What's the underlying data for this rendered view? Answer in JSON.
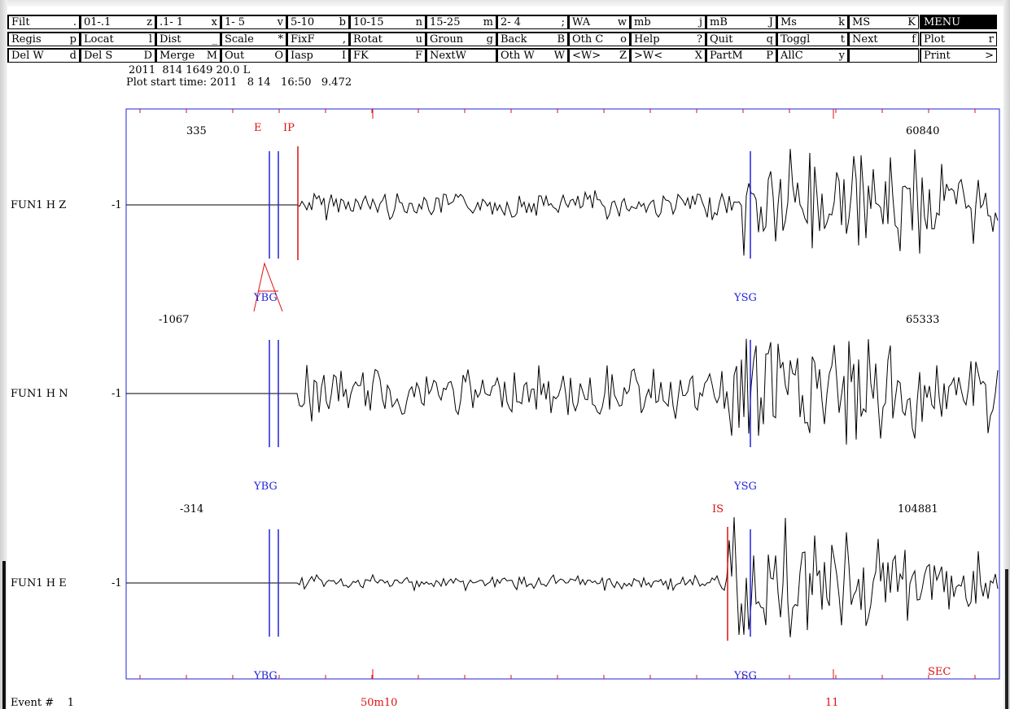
{
  "menu": {
    "row1": [
      {
        "label": "Filt",
        "key": "."
      },
      {
        "label": "01-.1",
        "key": "z"
      },
      {
        "label": ".1- 1",
        "key": "x"
      },
      {
        "label": "1- 5",
        "key": "v"
      },
      {
        "label": "5-10",
        "key": "b"
      },
      {
        "label": "10-15",
        "key": "n"
      },
      {
        "label": "15-25",
        "key": "m"
      },
      {
        "label": "2- 4",
        "key": ";"
      },
      {
        "label": "WA",
        "key": "w"
      },
      {
        "label": "mb",
        "key": "j"
      },
      {
        "label": "mB",
        "key": "J"
      },
      {
        "label": "Ms",
        "key": "k"
      },
      {
        "label": "MS",
        "key": "K"
      },
      {
        "label": "MENU",
        "key": ""
      }
    ],
    "row2": [
      {
        "label": "Regis",
        "key": "p"
      },
      {
        "label": "Locat",
        "key": "l"
      },
      {
        "label": "Dist",
        "key": "_"
      },
      {
        "label": "Scale",
        "key": "*"
      },
      {
        "label": "FixF",
        "key": ","
      },
      {
        "label": "Rotat",
        "key": "u"
      },
      {
        "label": "Groun",
        "key": "g"
      },
      {
        "label": "Back",
        "key": "B"
      },
      {
        "label": "Oth C",
        "key": "o"
      },
      {
        "label": "Help",
        "key": "?"
      },
      {
        "label": "Quit",
        "key": "q"
      },
      {
        "label": "Toggl",
        "key": "t"
      },
      {
        "label": "Next",
        "key": "f"
      },
      {
        "label": "Plot",
        "key": "r"
      }
    ],
    "row3": [
      {
        "label": "Del W",
        "key": "d"
      },
      {
        "label": "Del S",
        "key": "D"
      },
      {
        "label": "Merge",
        "key": "M"
      },
      {
        "label": "Out",
        "key": "O"
      },
      {
        "label": "Iasp",
        "key": "I"
      },
      {
        "label": "FK",
        "key": "F"
      },
      {
        "label": "NextW",
        "key": ""
      },
      {
        "label": "Oth W",
        "key": "W"
      },
      {
        "label": "<W>",
        "key": "Z"
      },
      {
        "label": ">W<",
        "key": "X"
      },
      {
        "label": "PartM",
        "key": "P"
      },
      {
        "label": "AllC",
        "key": "y"
      },
      {
        "label": "",
        "key": ""
      },
      {
        "label": "Print",
        "key": ">"
      }
    ]
  },
  "header": {
    "line1": "2011  814 1649 20.0 L",
    "line2": "Plot start time: 2011   8 14   16:50   9.472"
  },
  "traces": [
    {
      "station": "FUN1  H Z",
      "amp_left": "335",
      "amp_right": "60840",
      "baseline": "-1",
      "markers_top": [
        "E",
        "IP"
      ],
      "phase_labels": [
        "YBG",
        "YSG"
      ]
    },
    {
      "station": "FUN1  H N",
      "amp_left": "-1067",
      "amp_right": "65333",
      "baseline": "-1",
      "markers_top": [],
      "phase_labels": [
        "YBG",
        "YSG"
      ]
    },
    {
      "station": "FUN1  H E",
      "amp_left": "-314",
      "amp_right": "104881",
      "baseline": "-1",
      "markers_top": [
        "IS"
      ],
      "phase_labels": [
        "YBG",
        "YSG"
      ]
    }
  ],
  "footer": {
    "event_label": "Event #",
    "event_number": "1",
    "time_label_1": "50m10",
    "time_label_2": "11",
    "sec_label": "SEC"
  },
  "colors": {
    "frame": "#2222dd",
    "pick": "#dd1111",
    "trace": "#000000"
  }
}
